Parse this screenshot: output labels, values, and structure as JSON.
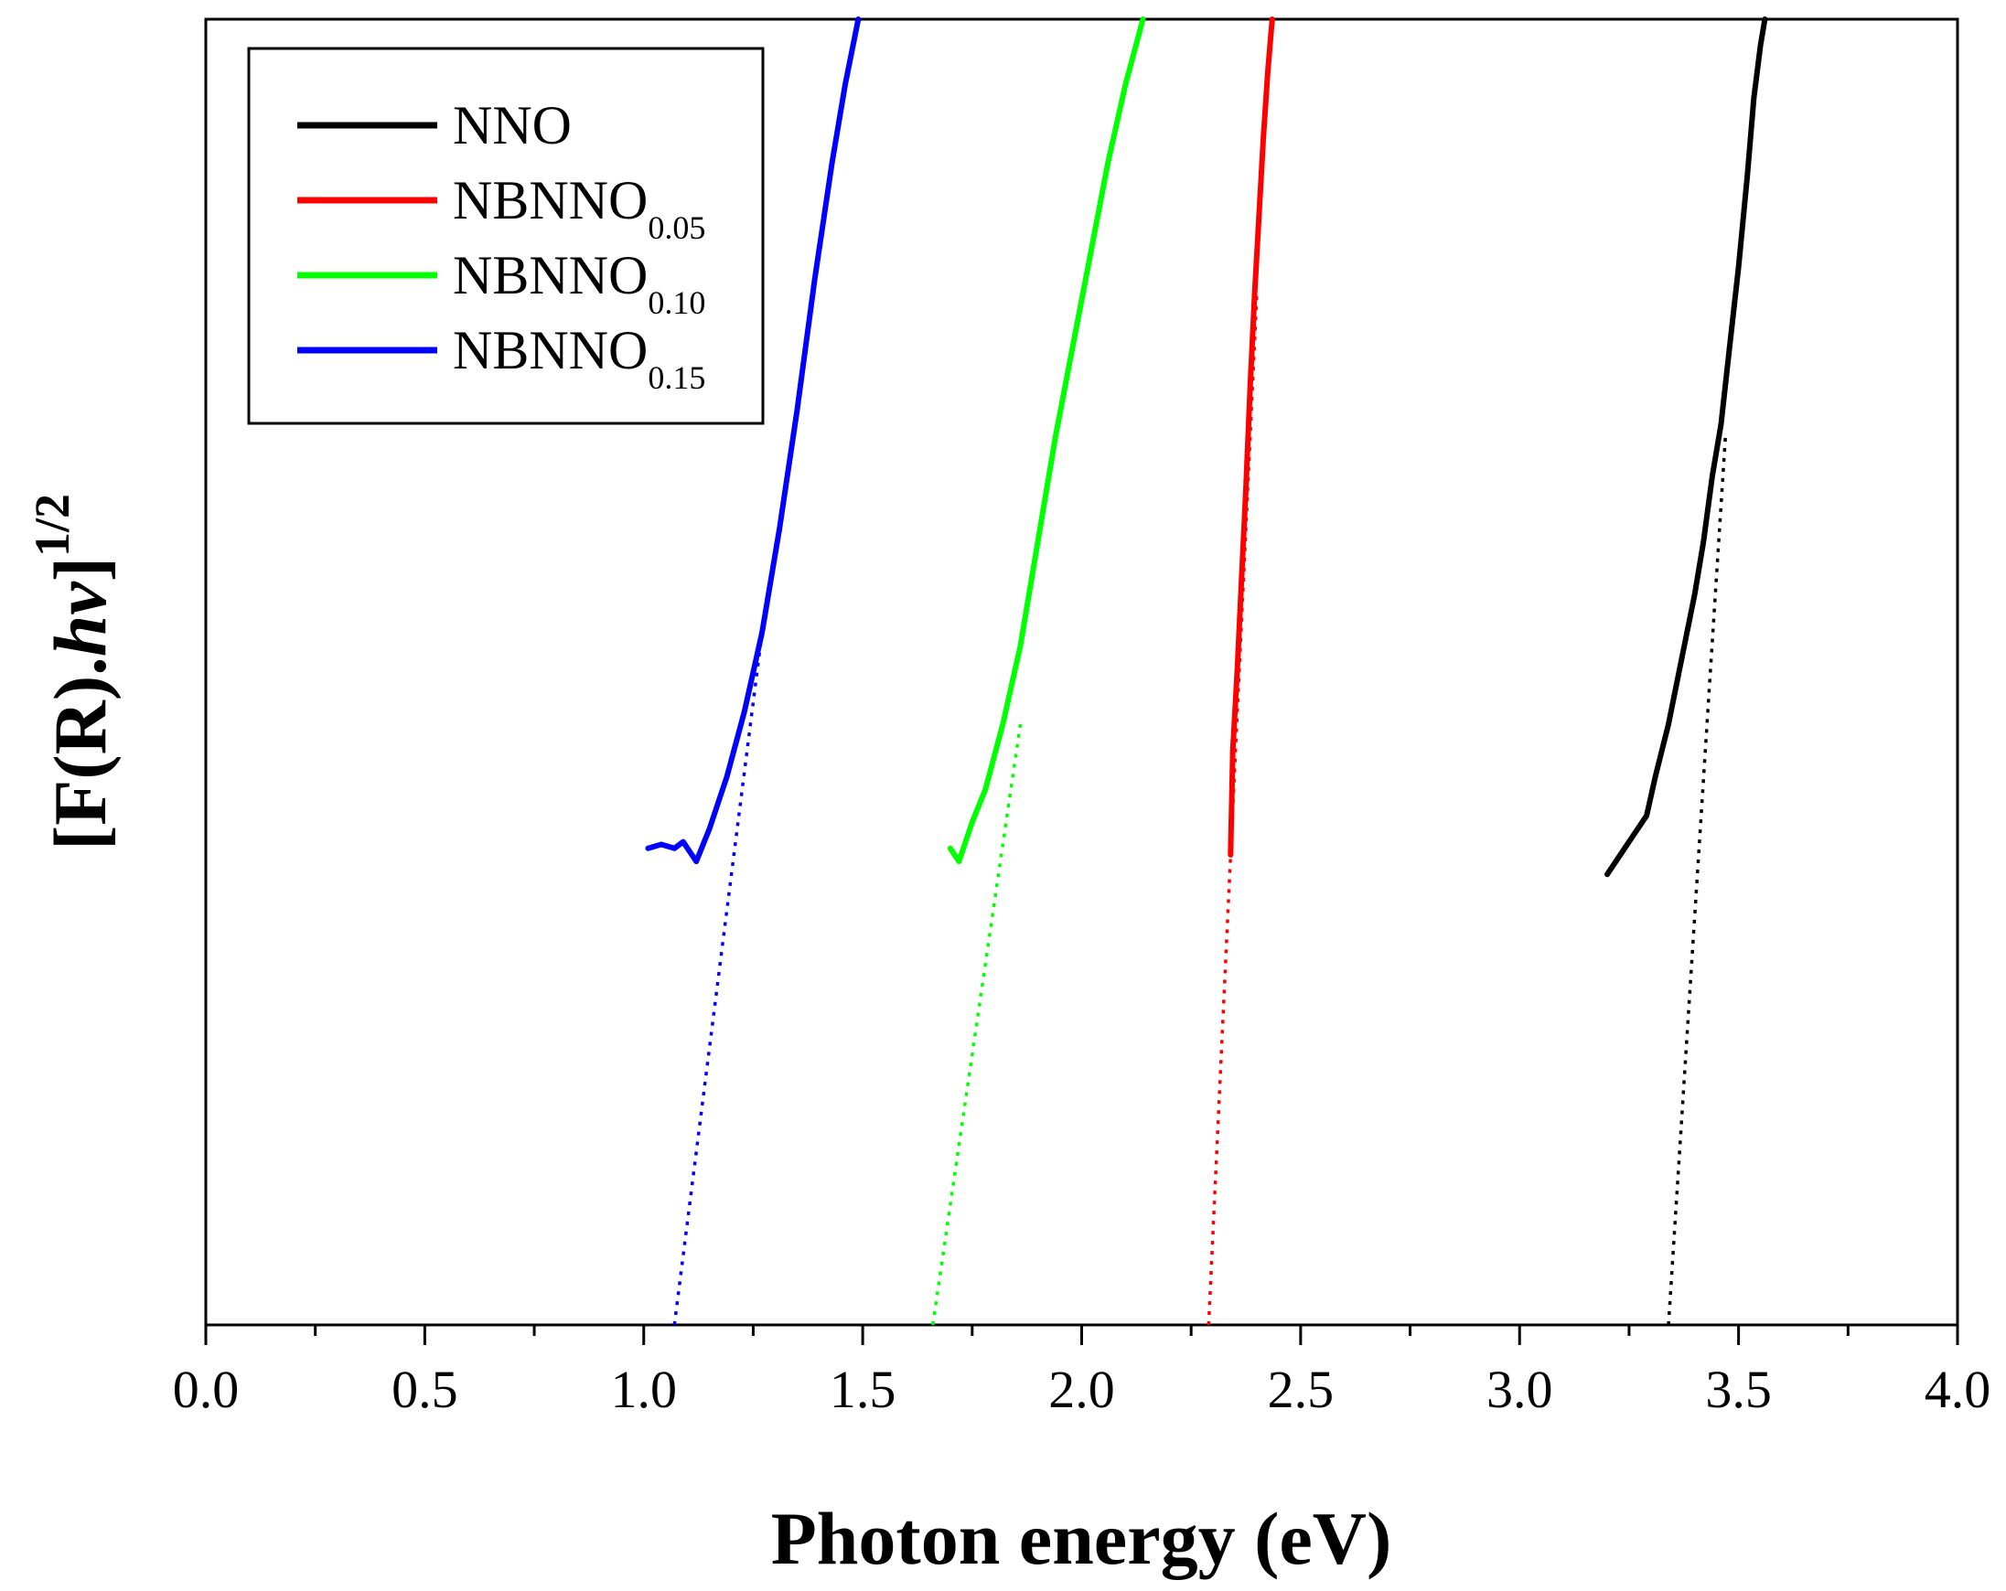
{
  "chart_data": {
    "type": "line",
    "title": "",
    "xlabel": "Photon energy (eV)",
    "ylabel": "[F(R).hv]",
    "ylabel_parts": {
      "main": "[F(R).",
      "italic": "hv",
      "close": "]",
      "sup": "1/2"
    },
    "xlim": [
      0.0,
      4.0
    ],
    "ylim": [
      0,
      1
    ],
    "yticks_shown": false,
    "xticks": [
      0.0,
      0.5,
      1.0,
      1.5,
      2.0,
      2.5,
      3.0,
      3.5,
      4.0
    ],
    "xtick_labels": [
      "0.0",
      "0.5",
      "1.0",
      "1.5",
      "2.0",
      "2.5",
      "3.0",
      "3.5",
      "4.0"
    ],
    "legend": {
      "position": "top-left",
      "entries": [
        {
          "base": "NNO",
          "sub": ""
        },
        {
          "base": "NBNNO",
          "sub": "0.05"
        },
        {
          "base": "NBNNO",
          "sub": "0.10"
        },
        {
          "base": "NBNNO",
          "sub": "0.15"
        }
      ]
    },
    "series": [
      {
        "name": "NNO",
        "color": "#000000",
        "x": [
          3.2,
          3.25,
          3.29,
          3.31,
          3.34,
          3.37,
          3.4,
          3.42,
          3.44,
          3.46,
          3.48,
          3.5,
          3.52,
          3.535,
          3.55,
          3.56
        ],
        "y": [
          0.345,
          0.37,
          0.39,
          0.42,
          0.46,
          0.51,
          0.56,
          0.6,
          0.65,
          0.69,
          0.75,
          0.81,
          0.88,
          0.94,
          0.98,
          1.0
        ],
        "tangent": {
          "x0": 3.34,
          "y0": 0.0,
          "x1": 3.47,
          "y1": 0.68
        }
      },
      {
        "name": "NBNNO0.05",
        "color": "#ff0000",
        "x": [
          2.34,
          2.345,
          2.355,
          2.365,
          2.375,
          2.385,
          2.395,
          2.405,
          2.415,
          2.425,
          2.435
        ],
        "y": [
          0.36,
          0.44,
          0.5,
          0.57,
          0.64,
          0.72,
          0.79,
          0.85,
          0.91,
          0.96,
          1.0
        ],
        "tangent": {
          "x0": 2.29,
          "y0": 0.0,
          "x1": 2.4,
          "y1": 0.79
        }
      },
      {
        "name": "NBNNO0.10",
        "color": "#00ff00",
        "x": [
          1.7,
          1.72,
          1.75,
          1.78,
          1.82,
          1.86,
          1.9,
          1.94,
          1.98,
          2.02,
          2.06,
          2.1,
          2.14
        ],
        "y": [
          0.365,
          0.355,
          0.385,
          0.41,
          0.46,
          0.52,
          0.6,
          0.68,
          0.75,
          0.82,
          0.89,
          0.95,
          1.0
        ],
        "tangent": {
          "x0": 1.66,
          "y0": 0.0,
          "x1": 1.86,
          "y1": 0.46
        }
      },
      {
        "name": "NBNNO0.15",
        "color": "#0000ff",
        "x": [
          1.01,
          1.04,
          1.07,
          1.09,
          1.12,
          1.15,
          1.19,
          1.23,
          1.27,
          1.31,
          1.35,
          1.39,
          1.43,
          1.46,
          1.49
        ],
        "y": [
          0.365,
          0.368,
          0.365,
          0.37,
          0.355,
          0.38,
          0.42,
          0.47,
          0.53,
          0.61,
          0.7,
          0.8,
          0.89,
          0.95,
          1.0
        ],
        "tangent": {
          "x0": 1.07,
          "y0": 0.0,
          "x1": 1.27,
          "y1": 0.53
        }
      }
    ]
  }
}
